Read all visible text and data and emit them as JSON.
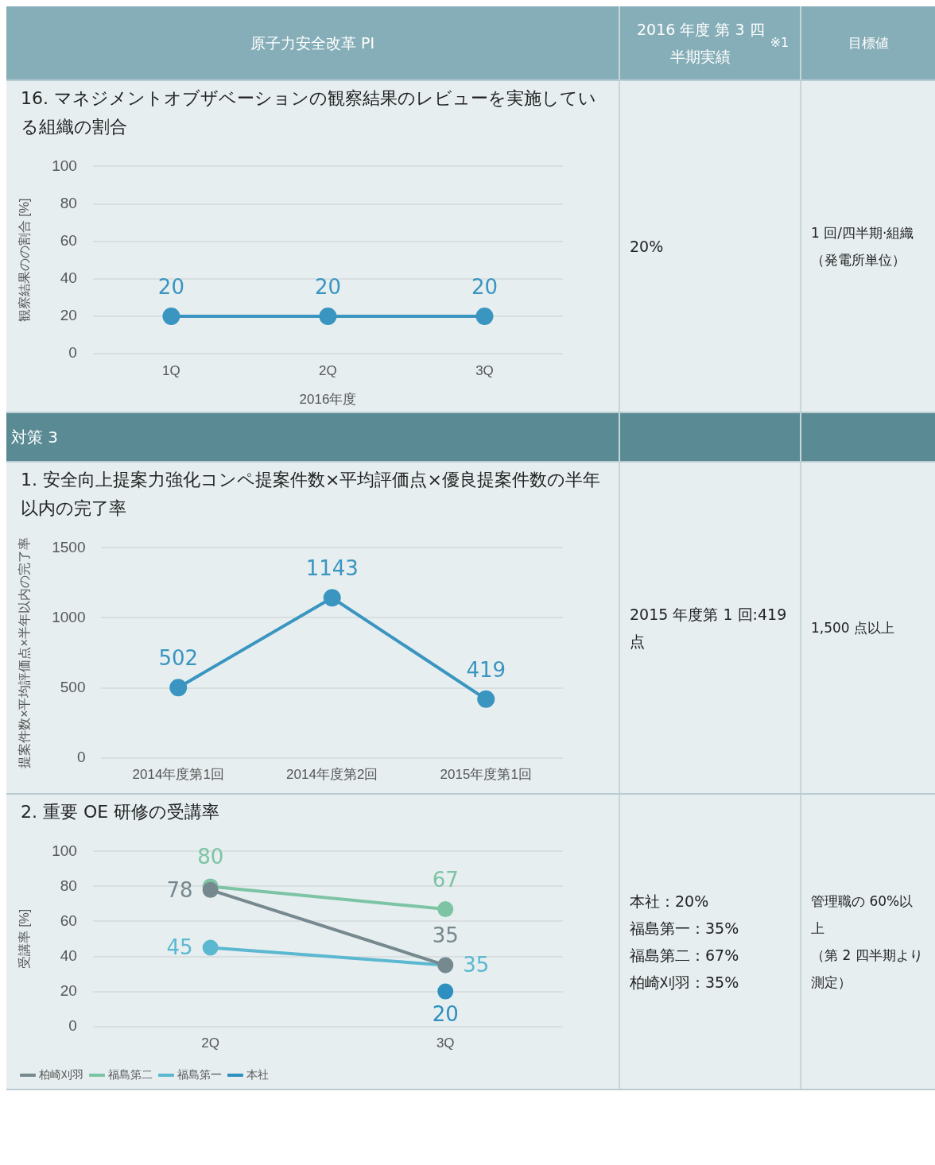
{
  "chart_data": [
    {
      "type": "other",
      "annotations": [
        "原子力安全改革 PI",
        "2016 年度 第 3 四半期実績$^{※1}$",
        "目標値"
      ]
    },
    {
      "type": "line",
      "title": "16. マネジメントオブザベーションの観察結果のレビューを実施している組織の割合",
      "ylabel": "観察結果のの割合 [%]",
      "xlabel": "2016年度",
      "categories": [
        "1Q",
        "2Q",
        "3Q"
      ],
      "values": [
        20,
        20,
        20
      ],
      "color": "#3a95c0",
      "ylim": [
        0,
        100
      ],
      "yticks": [
        0,
        20,
        40,
        60,
        80,
        100
      ],
      "grid": "y",
      "marker": "circle",
      "data_labels": true,
      "legend": false
    },
    {
      "type": "other",
      "annotations": [
        "20%",
        "1 回/四半期·組織（発電所単位）"
      ]
    },
    {
      "type": "other",
      "annotations": [
        "対策 3"
      ]
    },
    {
      "type": "line",
      "title": "1. 安全向上提案力強化コンペ提案件数×平均評価点×優良提案件数の半年以内の完了率",
      "ylabel": "提案件数×平均評価点×半年以内の完了率",
      "categories": [
        "2014年度第1回",
        "2014年度第2回",
        "2015年度第1回"
      ],
      "values": [
        502,
        1143,
        419
      ],
      "color": "#3a95c0",
      "ylim": [
        0,
        1500
      ],
      "yticks": [
        0,
        500,
        1000,
        1500
      ],
      "grid": "y",
      "marker": "circle",
      "data_labels": true,
      "legend": false
    },
    {
      "type": "other",
      "annotations": [
        "2015 年度第 1 回:419 点",
        "1,500 点以上"
      ]
    },
    {
      "type": "line",
      "title": "2. 重要 OE 研修の受講率",
      "ylabel": "受講率 [%]",
      "categories": [
        "2Q",
        "3Q"
      ],
      "ylim": [
        0,
        100
      ],
      "yticks": [
        0,
        20,
        40,
        60,
        80,
        100
      ],
      "grid": "y",
      "marker": "circle",
      "data_labels": true,
      "legend": "bottom left",
      "series": [
        {
          "name": "本社",
          "color": "#2e8fc0",
          "values": [
            null,
            20
          ]
        },
        {
          "name": "福島第一",
          "color": "#5bb8d0",
          "values": [
            45,
            35
          ]
        },
        {
          "name": "福島第二",
          "color": "#7cc4a4",
          "values": [
            80,
            67
          ]
        },
        {
          "name": "柏崎刈羽",
          "color": "#76898e",
          "values": [
            78,
            35
          ]
        }
      ]
    },
    {
      "type": "other",
      "annotations": [
        "本社：20%",
        "福島第一：35%",
        "福島第二：67%",
        "柏崎刈羽：35%",
        "管理職の 60%以上",
        "（第 2 四半期より測定）"
      ]
    }
  ]
}
